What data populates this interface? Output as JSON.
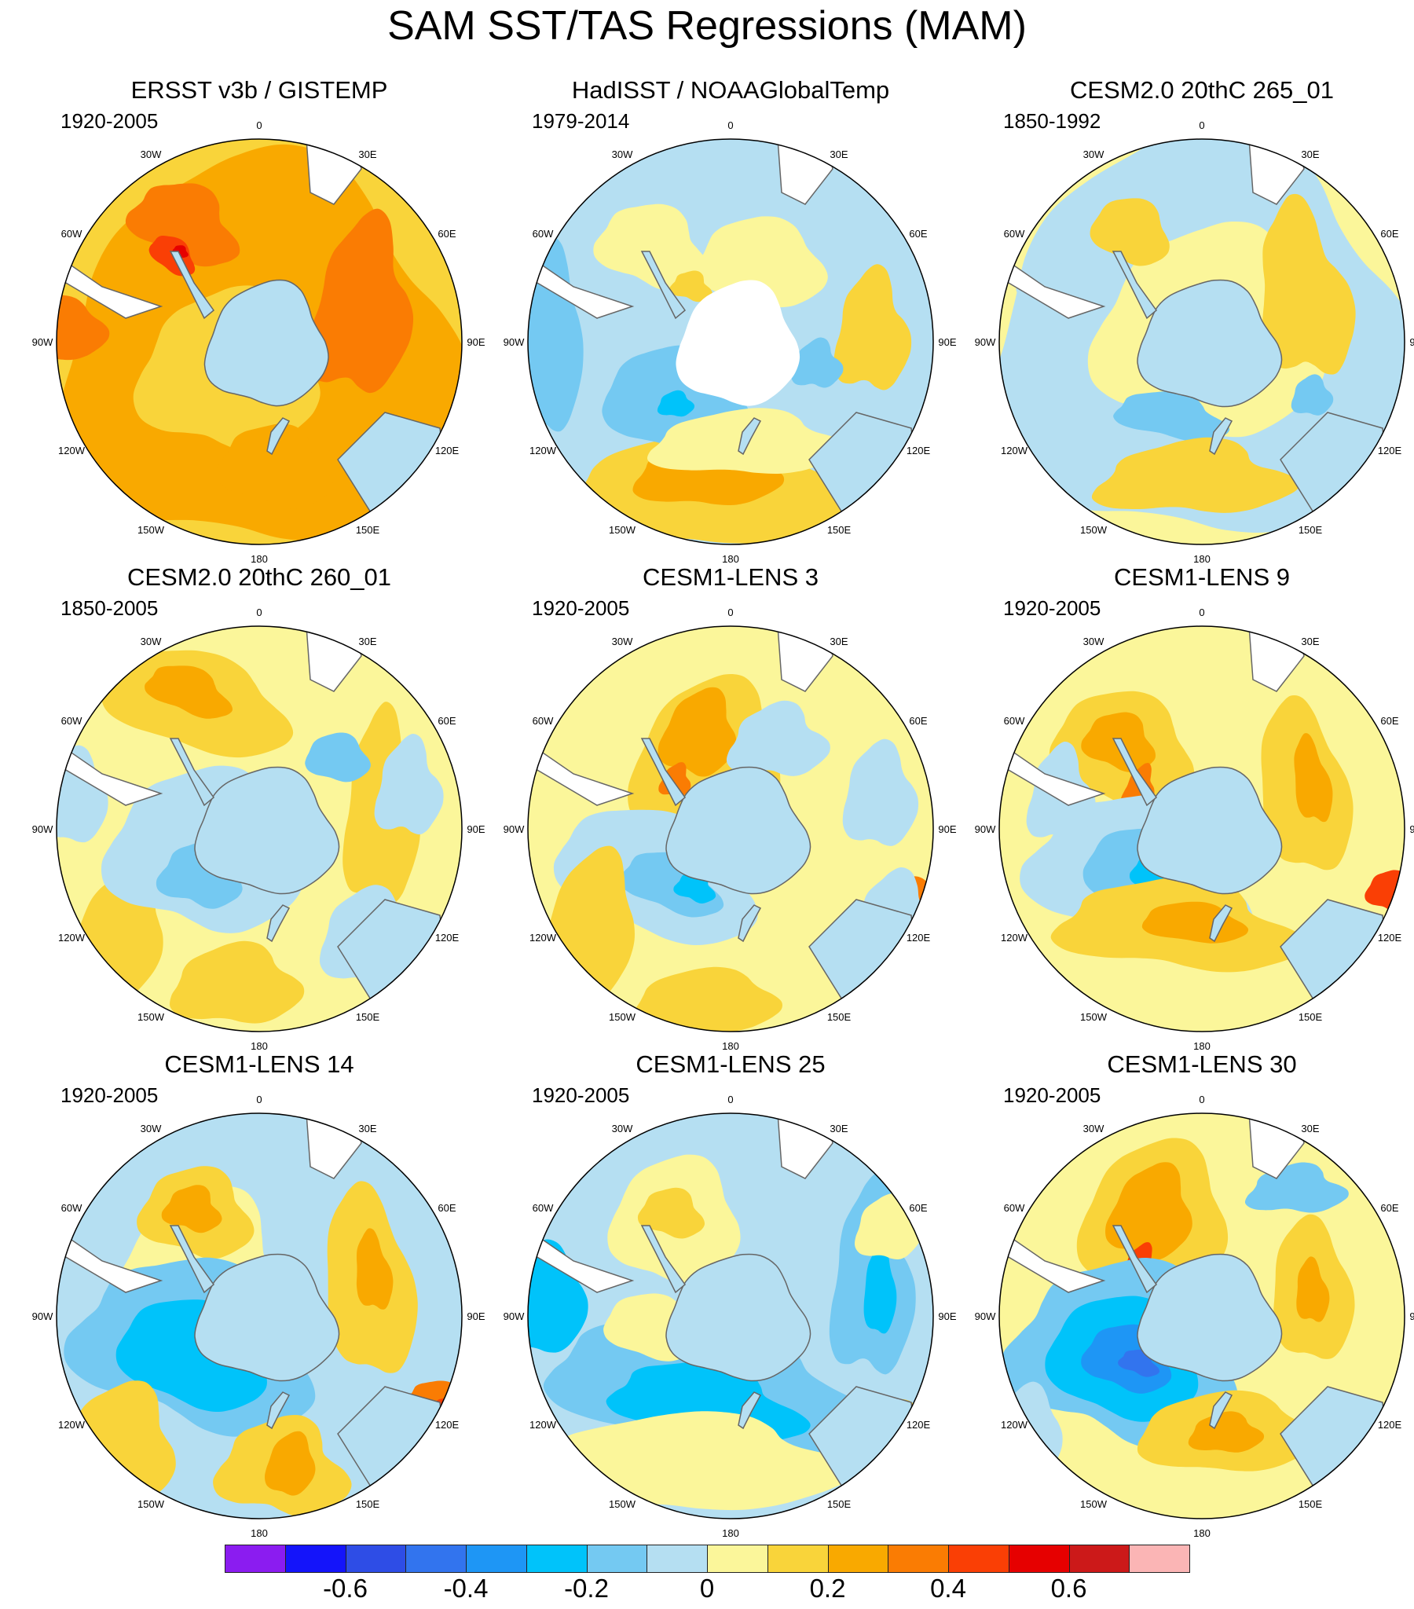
{
  "title": "SAM SST/TAS Regressions (MAM)",
  "lon_labels": [
    "0",
    "30E",
    "60E",
    "90E",
    "120E",
    "150E",
    "180",
    "150W",
    "120W",
    "90W",
    "60W",
    "30W"
  ],
  "panels": [
    {
      "title": "ERSST v3b / GISTEMP",
      "period": "1920-2005",
      "missing_antarctica": false
    },
    {
      "title": "HadISST / NOAAGlobalTemp",
      "period": "1979-2014",
      "missing_antarctica": true
    },
    {
      "title": "CESM2.0 20thC 265_01",
      "period": "1850-1992",
      "missing_antarctica": false
    },
    {
      "title": "CESM2.0 20thC 260_01",
      "period": "1850-2005",
      "missing_antarctica": false
    },
    {
      "title": "CESM1-LENS 3",
      "period": "1920-2005",
      "missing_antarctica": false
    },
    {
      "title": "CESM1-LENS 9",
      "period": "1920-2005",
      "missing_antarctica": false
    },
    {
      "title": "CESM1-LENS 14",
      "period": "1920-2005",
      "missing_antarctica": false
    },
    {
      "title": "CESM1-LENS 25",
      "period": "1920-2005",
      "missing_antarctica": false
    },
    {
      "title": "CESM1-LENS 30",
      "period": "1920-2005",
      "missing_antarctica": false
    }
  ],
  "colorbar": {
    "colors": [
      "#8b1cf0",
      "#1414fa",
      "#2e4de6",
      "#3274ee",
      "#1e96f5",
      "#00c3fa",
      "#74c9f2",
      "#b5dff2",
      "#fbf69a",
      "#f9d43a",
      "#f9a900",
      "#fa7c03",
      "#fa3f05",
      "#e60000",
      "#cc1919",
      "#fbb5b5"
    ],
    "tick_values": [
      "-0.6",
      "-0.4",
      "-0.2",
      "0",
      "0.2",
      "0.4",
      "0.6"
    ],
    "tick_box_index": [
      2,
      4,
      6,
      8,
      10,
      12,
      14
    ]
  },
  "colors": {
    "land": "#ffffff",
    "coast": "#666666",
    "background": "#ffffff"
  }
}
